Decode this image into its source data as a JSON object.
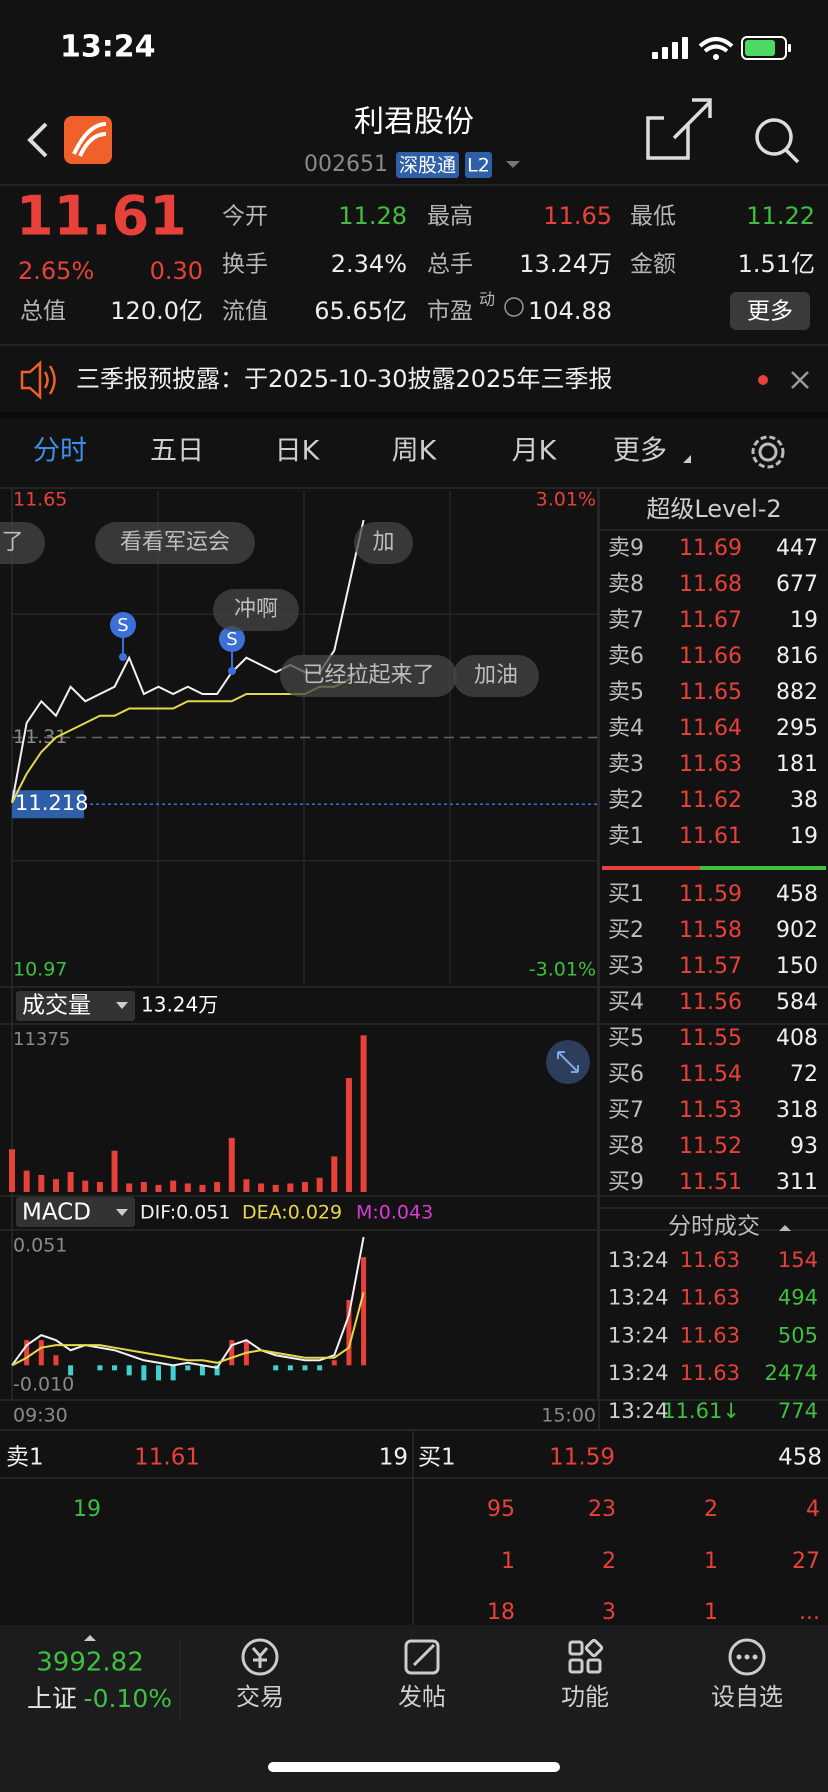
{
  "status": {
    "time": "13:24"
  },
  "header": {
    "title": "利君股份",
    "code": "002651",
    "badges": [
      "深股通",
      "L2"
    ]
  },
  "quote": {
    "price": 11.61,
    "change_pct": "2.65%",
    "change": "0.30",
    "total": {
      "label": "总值",
      "value": "120.0亿"
    },
    "fields": [
      {
        "label": "今开",
        "value": 11.28,
        "color": "#3fbf3f"
      },
      {
        "label": "最高",
        "value": 11.65,
        "color": "#e8413a"
      },
      {
        "label": "最低",
        "value": 11.22,
        "color": "#3fbf3f"
      },
      {
        "label": "换手",
        "value": "2.34%",
        "color": "#ececec"
      },
      {
        "label": "总手",
        "value": "13.24万",
        "color": "#ececec"
      },
      {
        "label": "金额",
        "value": "1.51亿",
        "color": "#ececec"
      },
      {
        "label": "流值",
        "value": "65.65亿",
        "color": "#ececec"
      },
      {
        "label": "市盈",
        "value": 104.88,
        "color": "#ececec"
      }
    ],
    "pe_note": "动",
    "more": "更多"
  },
  "notice": {
    "text": "三季报预披露：于2025-10-30披露2025年三季报"
  },
  "tabs": [
    "分时",
    "五日",
    "日K",
    "周K",
    "月K",
    "更多"
  ],
  "price_chart": {
    "type": "line",
    "ylim": [
      10.97,
      11.65
    ],
    "yticks": [
      11.65,
      11.31,
      10.97
    ],
    "pct_ticks": [
      {
        "value": 11.65,
        "label": "3.01%"
      },
      {
        "value": 10.97,
        "label": "-3.01%"
      }
    ],
    "ref_line": 11.218,
    "series": [
      {
        "color": "#f2f2f2",
        "values": [
          11.22,
          11.33,
          11.36,
          11.34,
          11.38,
          11.36,
          11.37,
          11.38,
          11.42,
          11.37,
          11.38,
          11.37,
          11.38,
          11.37,
          11.37,
          11.4,
          11.42,
          11.41,
          11.4,
          11.41,
          11.4,
          11.4,
          11.43,
          11.52,
          11.61
        ]
      },
      {
        "color": "#e6d84a",
        "values": [
          11.22,
          11.26,
          11.29,
          11.31,
          11.32,
          11.33,
          11.34,
          11.34,
          11.35,
          11.35,
          11.35,
          11.35,
          11.36,
          11.36,
          11.36,
          11.36,
          11.37,
          11.37,
          11.37,
          11.37,
          11.37,
          11.38,
          11.38,
          11.39,
          11.41
        ]
      }
    ],
    "danmaku": [
      "了",
      "看看军运会",
      "加",
      "冲啊",
      "已经拉起来了",
      "加油"
    ]
  },
  "volume_chart": {
    "type": "bar",
    "title": "成交量",
    "total": "13.24万",
    "ylim": [
      0,
      11375
    ],
    "yticks": [
      11375
    ],
    "color": "#e8413a",
    "values": [
      3000,
      1500,
      1200,
      900,
      1400,
      800,
      700,
      2900,
      600,
      700,
      500,
      800,
      600,
      500,
      700,
      3800,
      900,
      600,
      500,
      600,
      700,
      1000,
      2500,
      8000,
      11000
    ]
  },
  "macd_chart": {
    "type": "line",
    "title": "MACD",
    "legend": [
      {
        "text": "DIF:0.051",
        "color": "#f2f2f2"
      },
      {
        "text": "DEA:0.029",
        "color": "#e6d84a"
      },
      {
        "text": "M:0.043",
        "color": "#d63bd6"
      }
    ],
    "ylim": [
      -0.013,
      0.053
    ],
    "yticks": [
      0.051,
      {
        "value": -0.01,
        "label": "-0.010"
      }
    ],
    "series": [
      {
        "color": "#f2f2f2",
        "values": [
          0,
          0.008,
          0.012,
          0.01,
          0.006,
          0.008,
          0.007,
          0.006,
          0.004,
          0.002,
          0.001,
          0,
          0.001,
          0,
          -0.001,
          0.008,
          0.01,
          0.006,
          0.004,
          0.003,
          0.002,
          0.002,
          0.004,
          0.02,
          0.051
        ]
      },
      {
        "color": "#e6d84a",
        "values": [
          0,
          0.003,
          0.007,
          0.008,
          0.008,
          0.008,
          0.008,
          0.007,
          0.006,
          0.005,
          0.004,
          0.003,
          0.002,
          0.002,
          0.001,
          0.003,
          0.005,
          0.006,
          0.005,
          0.004,
          0.003,
          0.003,
          0.003,
          0.007,
          0.029
        ]
      }
    ],
    "bars": [
      0,
      0.01,
      0.01,
      0.004,
      -0.004,
      0,
      -0.002,
      -0.002,
      -0.004,
      -0.006,
      -0.006,
      -0.006,
      -0.002,
      -0.004,
      -0.004,
      0.01,
      0.01,
      0,
      -0.002,
      -0.002,
      -0.002,
      -0.002,
      0.002,
      0.026,
      0.043
    ],
    "x_labels": [
      "09:30",
      "15:00"
    ]
  },
  "level2": {
    "title": "超级Level-2",
    "asks": [
      {
        "label": "卖9",
        "price": 11.69,
        "volume": 447
      },
      {
        "label": "卖8",
        "price": 11.68,
        "volume": 677
      },
      {
        "label": "卖7",
        "price": 11.67,
        "volume": 19
      },
      {
        "label": "卖6",
        "price": 11.66,
        "volume": 816
      },
      {
        "label": "卖5",
        "price": 11.65,
        "volume": 882
      },
      {
        "label": "卖4",
        "price": 11.64,
        "volume": 295
      },
      {
        "label": "卖3",
        "price": 11.63,
        "volume": 181
      },
      {
        "label": "卖2",
        "price": 11.62,
        "volume": 38
      },
      {
        "label": "卖1",
        "price": 11.61,
        "volume": 19
      }
    ],
    "bids": [
      {
        "label": "买1",
        "price": 11.59,
        "volume": 458
      },
      {
        "label": "买2",
        "price": 11.58,
        "volume": 902
      },
      {
        "label": "买3",
        "price": 11.57,
        "volume": 150
      },
      {
        "label": "买4",
        "price": 11.56,
        "volume": 584
      },
      {
        "label": "买5",
        "price": 11.55,
        "volume": 408
      },
      {
        "label": "买6",
        "price": 11.54,
        "volume": 72
      },
      {
        "label": "买7",
        "price": 11.53,
        "volume": 318
      },
      {
        "label": "买8",
        "price": 11.52,
        "volume": 93
      },
      {
        "label": "买9",
        "price": 11.51,
        "volume": 311
      }
    ]
  },
  "trades": {
    "title": "分时成交",
    "rows": [
      {
        "time": "13:24",
        "price": 11.63,
        "volume": 154,
        "price_color": "#e8413a",
        "volume_color": "#e8413a"
      },
      {
        "time": "13:24",
        "price": 11.63,
        "volume": 494,
        "price_color": "#e8413a",
        "volume_color": "#3fbf3f"
      },
      {
        "time": "13:24",
        "price": 11.63,
        "volume": 505,
        "price_color": "#e8413a",
        "volume_color": "#3fbf3f"
      },
      {
        "time": "13:24",
        "price": 11.63,
        "volume": 2474,
        "price_color": "#e8413a",
        "volume_color": "#3fbf3f"
      },
      {
        "time": "13:24",
        "price": "11.61↓",
        "volume": 774,
        "price_color": "#3fbf3f",
        "volume_color": "#3fbf3f"
      }
    ]
  },
  "queue": {
    "ask": {
      "label": "卖1",
      "price": 11.61,
      "volume": 19,
      "orders": [
        19
      ]
    },
    "bid": {
      "label": "买1",
      "price": 11.59,
      "volume": 458,
      "orders": [
        95,
        23,
        2,
        4,
        1,
        2,
        1,
        27,
        18,
        3,
        1,
        "..."
      ]
    }
  },
  "tabbar": {
    "index": {
      "value": 3992.82,
      "name": "上证",
      "change": "-0.10%"
    },
    "items": [
      "交易",
      "发帖",
      "功能",
      "设自选"
    ]
  }
}
